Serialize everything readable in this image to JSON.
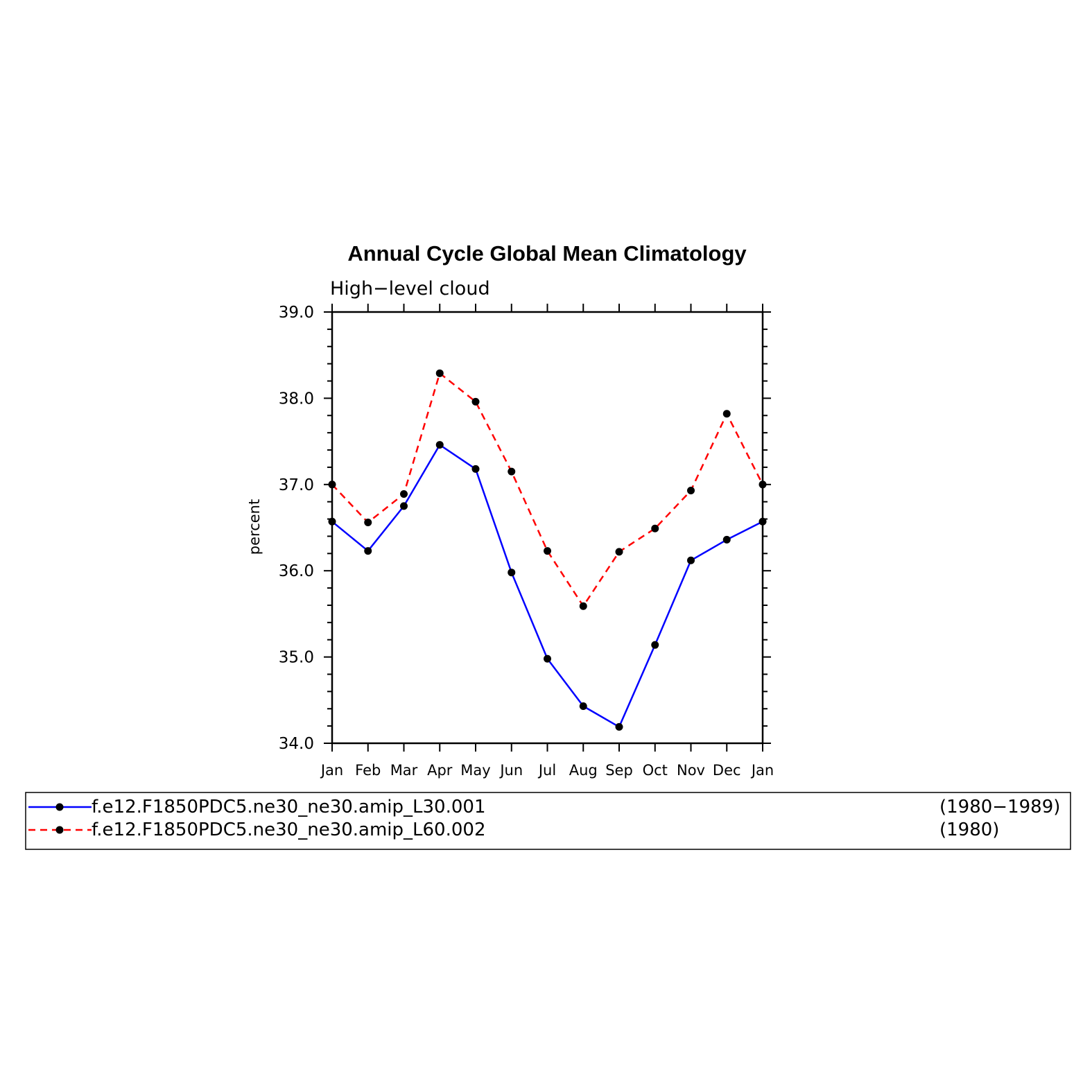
{
  "chart_data": {
    "type": "line",
    "title": "Annual Cycle Global Mean Climatology",
    "subtitle": "High−level  cloud",
    "xlabel": "",
    "ylabel": "percent",
    "categories": [
      "Jan",
      "Feb",
      "Mar",
      "Apr",
      "May",
      "Jun",
      "Jul",
      "Aug",
      "Sep",
      "Oct",
      "Nov",
      "Dec",
      "Jan"
    ],
    "ylim": [
      34.0,
      39.0
    ],
    "yticks": [
      "34.0",
      "35.0",
      "36.0",
      "37.0",
      "38.0",
      "39.0"
    ],
    "grid": false,
    "legend_position": "bottom",
    "series": [
      {
        "name": "f.e12.F1850PDC5.ne30_ne30.amip_L30.001",
        "period": "(1980−1989)",
        "color": "#0000ff",
        "line_style": "solid",
        "marker": "filled-circle",
        "values": [
          36.57,
          36.23,
          36.75,
          37.46,
          37.18,
          35.98,
          34.98,
          34.43,
          34.19,
          35.14,
          36.12,
          36.36,
          36.57
        ]
      },
      {
        "name": "f.e12.F1850PDC5.ne30_ne30.amip_L60.002",
        "period": "(1980)",
        "color": "#ff0000",
        "line_style": "dashed",
        "marker": "filled-circle",
        "values": [
          37.0,
          36.56,
          36.89,
          38.29,
          37.96,
          37.15,
          36.23,
          35.59,
          36.22,
          36.49,
          36.93,
          37.82,
          37.0
        ]
      }
    ],
    "marker_color": "#000000"
  }
}
